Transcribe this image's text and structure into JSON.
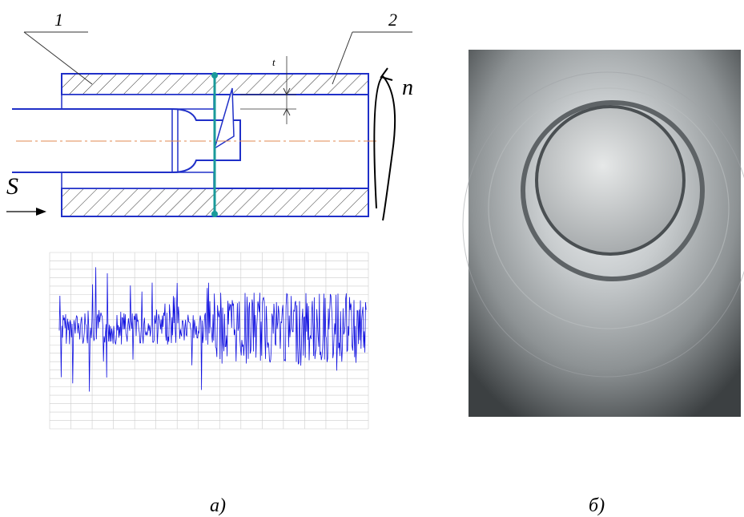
{
  "diagram": {
    "labels": {
      "part_1": "1",
      "part_2": "2",
      "depth": "t",
      "rotation": "п",
      "feed": "S"
    }
  },
  "captions": [
    "а)",
    "б)"
  ]
}
